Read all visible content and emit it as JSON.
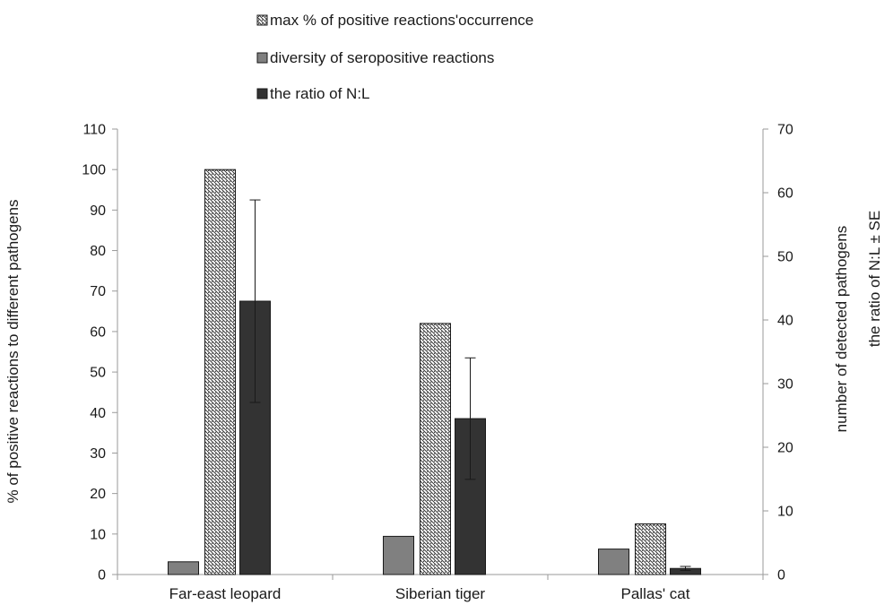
{
  "chart_data": {
    "type": "bar",
    "categories": [
      "Far-east leopard",
      "Siberian tiger",
      "Pallas' cat"
    ],
    "series": [
      {
        "name": "diversity of seropositive reactions",
        "axis": "right",
        "color": "#808080",
        "pattern": "solid",
        "values": [
          2,
          6,
          4
        ]
      },
      {
        "name": "max % of positive reactions'occurrence",
        "axis": "left",
        "color": "#ffffff",
        "pattern": "diagonal-hatch",
        "values": [
          100,
          62,
          12.5
        ]
      },
      {
        "name": "the ratio of N:L",
        "axis": "left",
        "color": "#333333",
        "pattern": "solid",
        "values": [
          67.5,
          38.5,
          1.5
        ],
        "error": [
          25,
          15,
          0.5
        ]
      }
    ],
    "legend_order": [
      1,
      0,
      2
    ],
    "legend_placement": "top",
    "yleft": {
      "label": "% of positive reactions to different pathogens",
      "ylim": [
        0,
        110
      ],
      "ticks": [
        0,
        10,
        20,
        30,
        40,
        50,
        60,
        70,
        80,
        90,
        100,
        110
      ]
    },
    "yright": {
      "label": "number of detected pathogens",
      "ylim": [
        0,
        70
      ],
      "ticks": [
        0,
        10,
        20,
        30,
        40,
        50,
        60,
        70
      ]
    },
    "yright2": {
      "label": "the ratio of N:L ± SE"
    },
    "grid": false
  }
}
